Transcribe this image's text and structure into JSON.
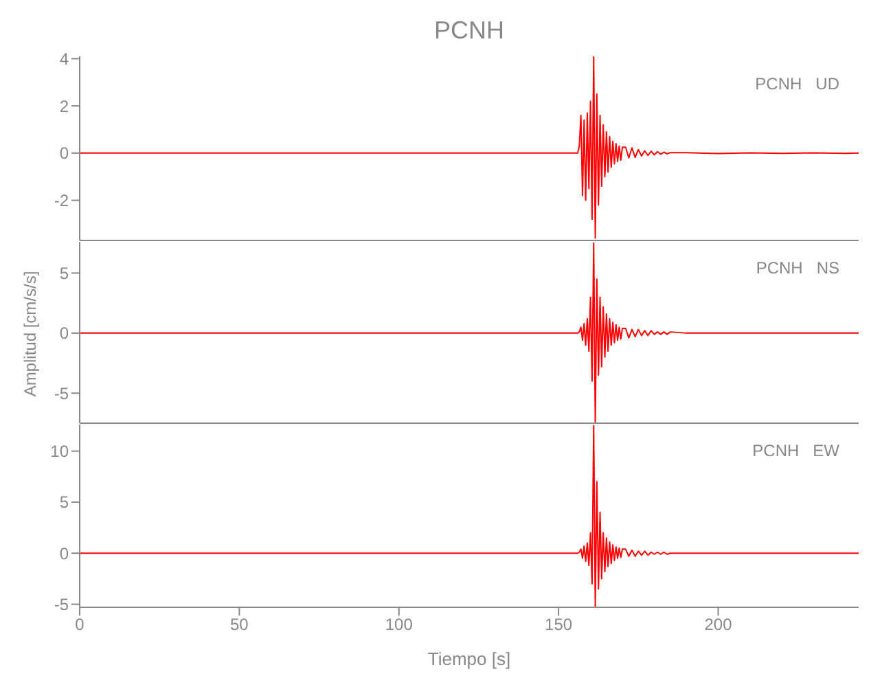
{
  "chart_data": [
    {
      "type": "line",
      "title": "PCNH",
      "annotations": [
        "PCNH   UD"
      ],
      "tick_labels": "y",
      "x": [
        0,
        10,
        20,
        30,
        40,
        50,
        60,
        70,
        80,
        90,
        100,
        110,
        120,
        130,
        140,
        150,
        155,
        156,
        156.5,
        157,
        157.5,
        158,
        158.5,
        159,
        159.5,
        160,
        160.5,
        161,
        161.5,
        162,
        162.5,
        163,
        163.5,
        164,
        164.5,
        165,
        165.5,
        166,
        166.5,
        167,
        167.5,
        168,
        168.5,
        169,
        169.5,
        170,
        171,
        172,
        173,
        174,
        175,
        176,
        177,
        178,
        179,
        180,
        181,
        182,
        183,
        184,
        185,
        190,
        200,
        210,
        220,
        230,
        240,
        244
      ],
      "series": [
        {
          "color": "#ff0000",
          "values": [
            0,
            0,
            0,
            0,
            0,
            0,
            0,
            0,
            0,
            0,
            0,
            0,
            0,
            0,
            0,
            0,
            0,
            0,
            0.3,
            1.6,
            -1.8,
            1.4,
            -2.0,
            1.7,
            -1.5,
            2.2,
            -2.8,
            4.1,
            -3.6,
            2.5,
            -2.2,
            1.6,
            -1.4,
            1.2,
            -1.0,
            0.9,
            -0.8,
            0.7,
            -0.6,
            0.5,
            -0.45,
            0.4,
            -0.35,
            0.3,
            -0.3,
            0.25,
            0.25,
            -0.2,
            0.22,
            -0.18,
            0.15,
            -0.12,
            0.1,
            -0.1,
            0.08,
            -0.07,
            0.06,
            -0.05,
            0.04,
            -0.03,
            0.02,
            0.02,
            -0.02,
            0.01,
            -0.01,
            0.01,
            -0.01,
            0
          ]
        }
      ],
      "xlim": [
        0,
        244
      ],
      "xticks": [
        0,
        50,
        100,
        150,
        200
      ],
      "ylim": [
        -3.7,
        4.1
      ],
      "yticks": [
        -2,
        0,
        2,
        4
      ]
    },
    {
      "type": "line",
      "ylabel": "Amplitud  [cm/s/s]",
      "annotations": [
        "PCNH   NS"
      ],
      "tick_labels": "y",
      "x": [
        0,
        10,
        20,
        30,
        40,
        50,
        60,
        70,
        80,
        90,
        100,
        110,
        120,
        130,
        140,
        150,
        155,
        156,
        156.5,
        157,
        157.5,
        158,
        158.5,
        159,
        159.5,
        160,
        160.5,
        161,
        161.5,
        162,
        162.5,
        163,
        163.5,
        164,
        164.5,
        165,
        165.5,
        166,
        166.5,
        167,
        167.5,
        168,
        168.5,
        169,
        169.5,
        170,
        171,
        172,
        173,
        174,
        175,
        176,
        177,
        178,
        179,
        180,
        181,
        182,
        183,
        184,
        185,
        190,
        200,
        210,
        220,
        230,
        240,
        244
      ],
      "series": [
        {
          "color": "#ff0000",
          "values": [
            0,
            0,
            0,
            0,
            0,
            0,
            0,
            0,
            0,
            0,
            0,
            0,
            0,
            0,
            0,
            0,
            0,
            0,
            0.1,
            0.5,
            -0.6,
            0.8,
            -1.0,
            1.2,
            -1.5,
            3.0,
            -4.0,
            7.5,
            -7.4,
            4.5,
            -3.5,
            3.0,
            -2.8,
            2.2,
            -2.0,
            1.6,
            -1.5,
            1.2,
            -1.0,
            0.9,
            -0.8,
            0.7,
            -0.6,
            0.5,
            -0.5,
            0.4,
            0.4,
            -0.4,
            0.3,
            -0.3,
            0.3,
            -0.2,
            0.2,
            -0.2,
            0.2,
            -0.1,
            0.1,
            -0.1,
            0.1,
            -0.1,
            0.1,
            0,
            0,
            0,
            0,
            0,
            0,
            0
          ]
        }
      ],
      "xlim": [
        0,
        244
      ],
      "xticks": [
        0,
        50,
        100,
        150,
        200
      ],
      "ylim": [
        -7.5,
        7.6
      ],
      "yticks": [
        -5,
        0,
        5
      ]
    },
    {
      "type": "line",
      "xlabel": "Tiempo  [s]",
      "annotations": [
        "PCNH   EW"
      ],
      "x": [
        0,
        10,
        20,
        30,
        40,
        50,
        60,
        70,
        80,
        90,
        100,
        110,
        120,
        130,
        140,
        150,
        155,
        156,
        156.5,
        157,
        157.5,
        158,
        158.5,
        159,
        159.5,
        160,
        160.5,
        161,
        161.5,
        162,
        162.5,
        163,
        163.5,
        164,
        164.5,
        165,
        165.5,
        166,
        166.5,
        167,
        167.5,
        168,
        168.5,
        169,
        169.5,
        170,
        171,
        172,
        173,
        174,
        175,
        176,
        177,
        178,
        179,
        180,
        181,
        182,
        183,
        184,
        185,
        190,
        200,
        210,
        220,
        230,
        240,
        244
      ],
      "series": [
        {
          "color": "#ff0000",
          "values": [
            0,
            0,
            0,
            0,
            0,
            0,
            0,
            0,
            0,
            0,
            0,
            0,
            0,
            0,
            0,
            0,
            0,
            0,
            0.1,
            0.4,
            -0.5,
            0.7,
            -0.8,
            1.0,
            -1.2,
            2.0,
            -3.0,
            12.5,
            -5.2,
            7.0,
            -3.5,
            4.0,
            -2.5,
            2.0,
            -1.8,
            1.5,
            -1.3,
            1.1,
            -1.0,
            0.8,
            -0.7,
            0.6,
            -0.5,
            0.5,
            -0.4,
            0.4,
            0.4,
            -0.3,
            0.3,
            -0.3,
            0.2,
            -0.2,
            0.2,
            -0.2,
            0.1,
            -0.1,
            0.1,
            -0.1,
            0.1,
            -0.1,
            0,
            0,
            0,
            0,
            0,
            0,
            0,
            0
          ]
        }
      ],
      "xlim": [
        0,
        244
      ],
      "xticks": [
        0,
        50,
        100,
        150,
        200
      ],
      "ylim": [
        -5.3,
        12.6
      ],
      "yticks": [
        -5,
        0,
        5,
        10
      ]
    }
  ]
}
